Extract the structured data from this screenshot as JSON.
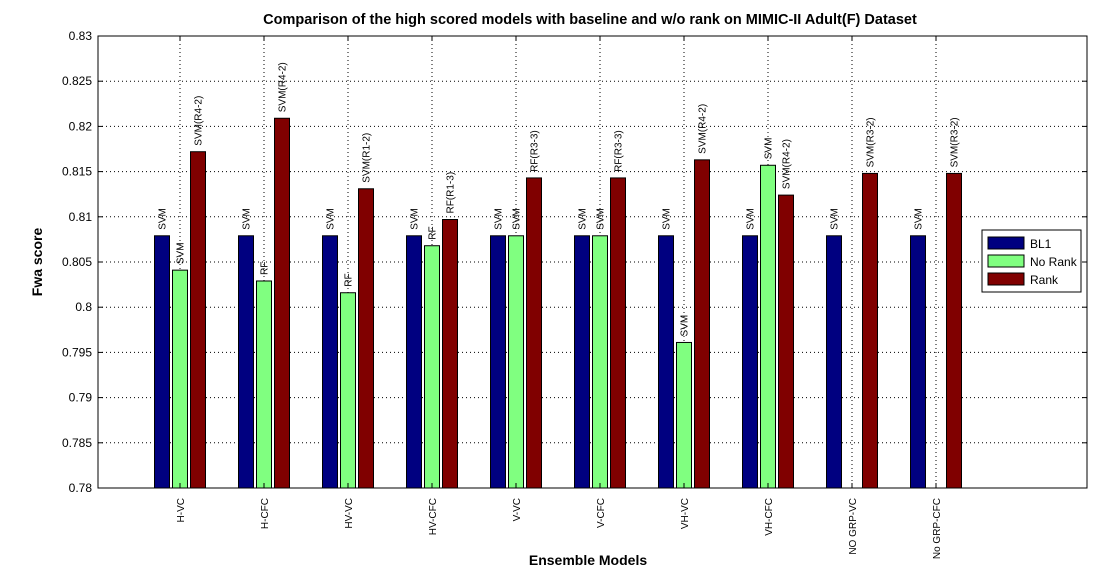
{
  "chart_data": {
    "type": "bar",
    "title": "Comparison of the high scored models with baseline and w/o rank on MIMIC-II Adult(F) Dataset",
    "xlabel": "Ensemble Models",
    "ylabel": "Fwa score",
    "ylim": [
      0.78,
      0.83
    ],
    "yticks": [
      "0.78",
      "0.785",
      "0.79",
      "0.795",
      "0.8",
      "0.805",
      "0.81",
      "0.815",
      "0.82",
      "0.825",
      "0.83"
    ],
    "categories": [
      "H-VC",
      "H-CFC",
      "HV-VC",
      "HV-CFC",
      "V-VC",
      "V-CFC",
      "VH-VC",
      "VH-CFC",
      "NO GRP-VC",
      "No GRP-CFC"
    ],
    "series": [
      {
        "name": "BL1",
        "color": "#000080",
        "values": [
          0.8079,
          0.8079,
          0.8079,
          0.8079,
          0.8079,
          0.8079,
          0.8079,
          0.8079,
          0.8079,
          0.8079
        ],
        "labels": [
          "SVM",
          "SVM",
          "SVM",
          "SVM",
          "SVM",
          "SVM",
          "SVM",
          "SVM",
          "SVM",
          "SVM"
        ]
      },
      {
        "name": "No Rank",
        "color": "#80ff80",
        "values": [
          0.8041,
          0.8029,
          0.8016,
          0.8068,
          0.8079,
          0.8079,
          0.7961,
          0.8157,
          null,
          null
        ],
        "labels": [
          "SVM",
          "RF",
          "RF",
          "RF",
          "SVM",
          "SVM",
          "SVM",
          "SVM",
          "",
          ""
        ]
      },
      {
        "name": "Rank",
        "color": "#800000",
        "values": [
          0.8172,
          0.8209,
          0.8131,
          0.8097,
          0.8143,
          0.8143,
          0.8163,
          0.8124,
          0.8148,
          0.8148
        ],
        "labels": [
          "SVM(R4-2)",
          "SVM(R4-2)",
          "SVM(R1-2)",
          "RF(R1-3)",
          "RF(R3-3)",
          "RF(R3-3)",
          "SVM(R4-2)",
          "SVM(R4-2)",
          "SVM(R3-2)",
          "SVM(R3-2)"
        ]
      }
    ],
    "grid": true,
    "legend_position": "right"
  }
}
